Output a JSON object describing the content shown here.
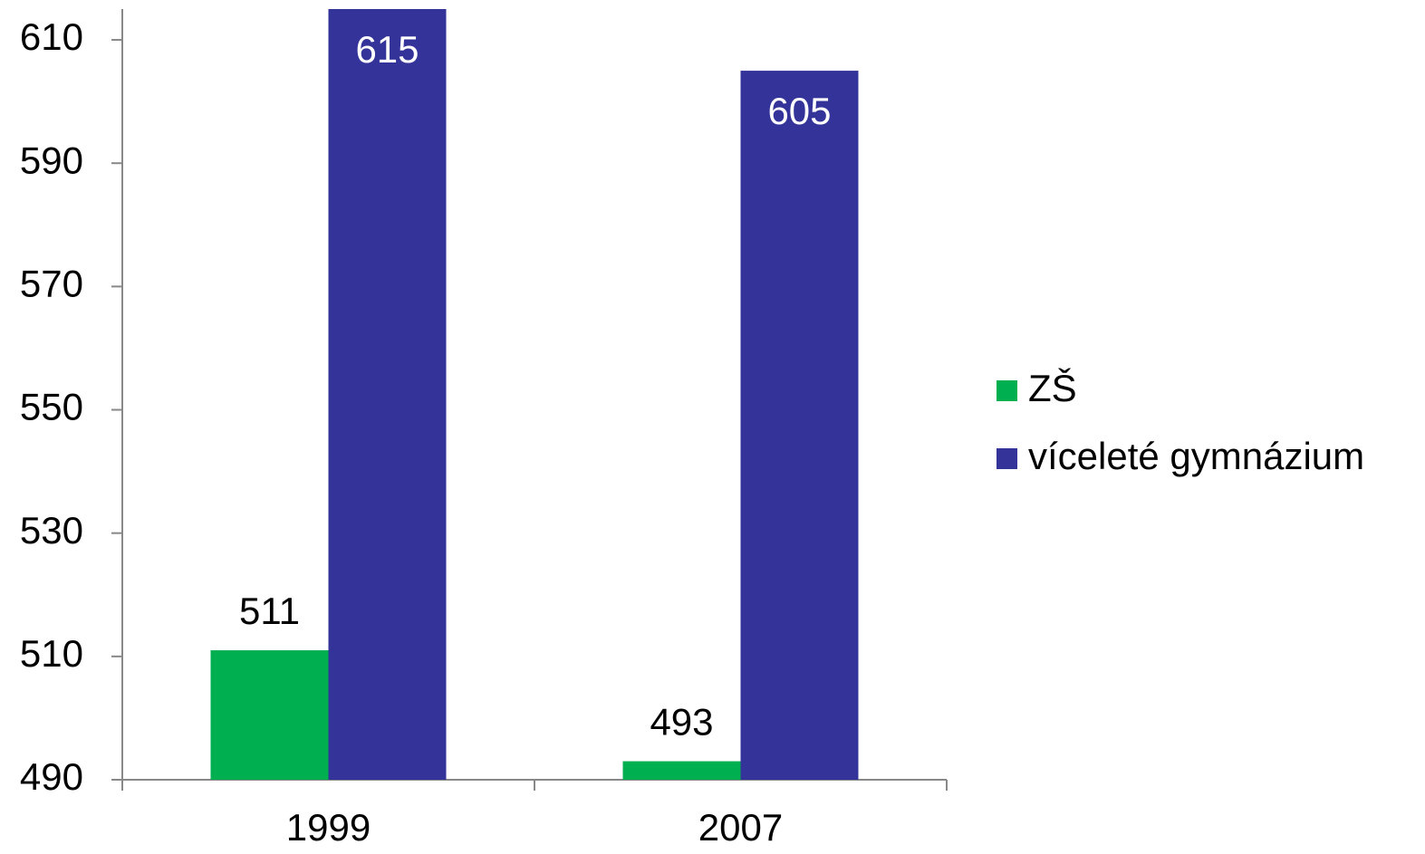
{
  "chart_data": {
    "type": "bar",
    "categories": [
      "1999",
      "2007"
    ],
    "series": [
      {
        "name": "ZŠ",
        "color": "#00b050",
        "values": [
          511,
          493
        ]
      },
      {
        "name": "víceleté gymnázium",
        "color": "#333399",
        "values": [
          615,
          605
        ]
      }
    ],
    "ylim": [
      490,
      615
    ],
    "yticks": [
      490,
      510,
      530,
      550,
      570,
      590,
      610
    ],
    "grid": false,
    "legend": "right"
  }
}
